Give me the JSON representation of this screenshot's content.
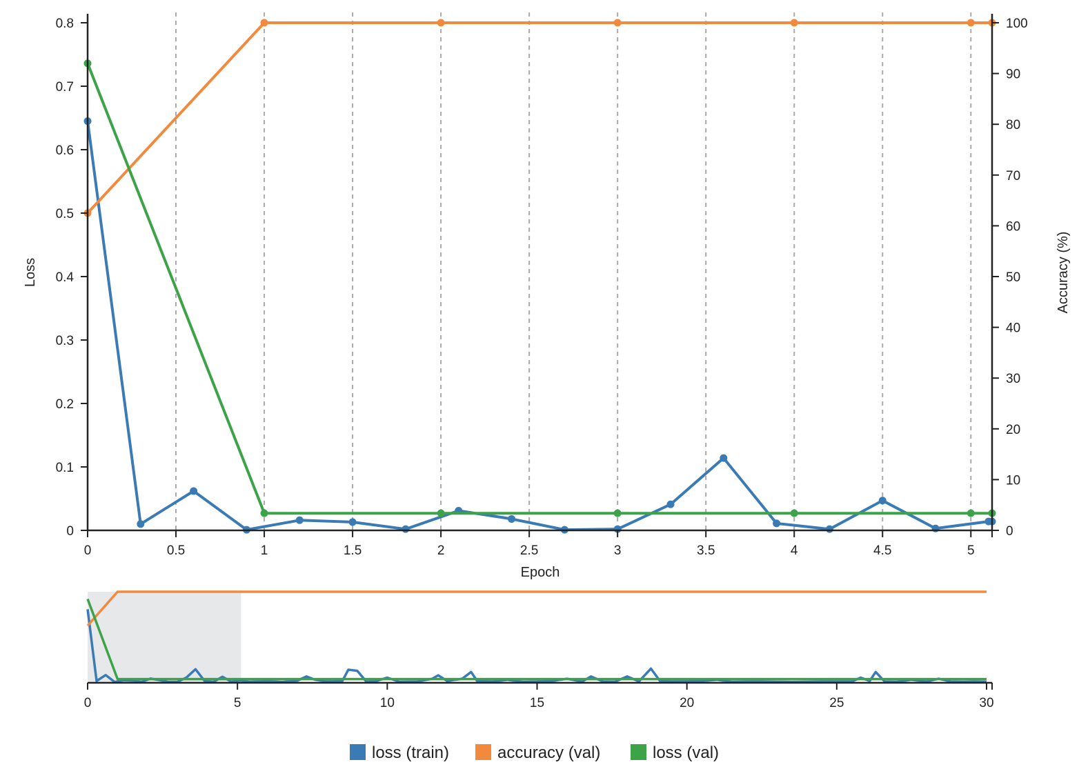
{
  "chart_data": {
    "type": "line",
    "xlabel": "Epoch",
    "ylabel": "Loss",
    "y2label": "Accuracy (%)",
    "xlim": [
      0,
      5.12
    ],
    "ylim": [
      0,
      0.8
    ],
    "y2lim": [
      0,
      100
    ],
    "x_ticks": [
      "0",
      "0.5",
      "1",
      "1.5",
      "2",
      "2.5",
      "3",
      "3.5",
      "4",
      "4.5",
      "5"
    ],
    "x_tick_values": [
      0,
      0.5,
      1,
      1.5,
      2,
      2.5,
      3,
      3.5,
      4,
      4.5,
      5
    ],
    "y_ticks": [
      "0",
      "0.1",
      "0.2",
      "0.3",
      "0.4",
      "0.5",
      "0.6",
      "0.7",
      "0.8"
    ],
    "y_tick_values": [
      0,
      0.1,
      0.2,
      0.3,
      0.4,
      0.5,
      0.6,
      0.7,
      0.8
    ],
    "y2_ticks": [
      "0",
      "10",
      "20",
      "30",
      "40",
      "50",
      "60",
      "70",
      "80",
      "90",
      "100"
    ],
    "y2_tick_values": [
      0,
      10,
      20,
      30,
      40,
      50,
      60,
      70,
      80,
      90,
      100
    ],
    "vertical_gridlines": true,
    "legend_position": "bottom-center",
    "series": [
      {
        "name": "loss (train)",
        "axis": "left",
        "color": "#3a7ab5",
        "x": [
          0,
          0.3,
          0.6,
          0.9,
          1.2,
          1.5,
          1.8,
          2.1,
          2.4,
          2.7,
          3.0,
          3.3,
          3.6,
          3.9,
          4.2,
          4.5,
          4.8,
          5.1,
          5.12
        ],
        "y": [
          0.645,
          0.01,
          0.062,
          0.001,
          0.016,
          0.013,
          0.002,
          0.031,
          0.018,
          0.001,
          0.002,
          0.041,
          0.114,
          0.011,
          0.002,
          0.047,
          0.003,
          0.014,
          0.014
        ]
      },
      {
        "name": "accuracy (val)",
        "axis": "right",
        "color": "#f28a3e",
        "x": [
          0,
          1,
          2,
          3,
          4,
          5,
          5.12
        ],
        "y": [
          62.5,
          100,
          100,
          100,
          100,
          100,
          100
        ]
      },
      {
        "name": "loss (val)",
        "axis": "left",
        "color": "#3da349",
        "x": [
          0,
          1,
          2,
          3,
          4,
          5,
          5.12
        ],
        "y": [
          0.736,
          0.027,
          0.027,
          0.027,
          0.027,
          0.027,
          0.027
        ]
      }
    ],
    "overview": {
      "xlim": [
        0,
        30
      ],
      "x_ticks": [
        "0",
        "5",
        "10",
        "15",
        "20",
        "25",
        "30"
      ],
      "x_tick_values": [
        0,
        5,
        10,
        15,
        20,
        25,
        30
      ],
      "selection": [
        0,
        5.12
      ],
      "series": [
        {
          "name": "loss (train)",
          "x": [
            0,
            0.3,
            0.6,
            0.9,
            1.2,
            1.5,
            1.8,
            2.1,
            2.4,
            2.7,
            3.0,
            3.3,
            3.6,
            3.9,
            4.2,
            4.5,
            4.8,
            5.1,
            5.4,
            6.0,
            6.5,
            7.0,
            7.3,
            7.6,
            8.0,
            8.5,
            8.7,
            9.0,
            9.3,
            9.6,
            10.0,
            10.4,
            11.0,
            11.5,
            11.7,
            12.0,
            12.5,
            12.8,
            13.0,
            13.5,
            14.0,
            14.5,
            15.0,
            15.5,
            16.0,
            16.5,
            16.8,
            17.2,
            17.6,
            18.0,
            18.4,
            18.8,
            19.1,
            19.5,
            20.0,
            20.5,
            21.0,
            21.5,
            22.0,
            22.5,
            23.0,
            23.5,
            24.0,
            24.5,
            25.0,
            25.5,
            25.8,
            26.1,
            26.3,
            26.6,
            27.0,
            27.5,
            28.0,
            28.4,
            28.8,
            29.2,
            29.6,
            30
          ],
          "y": [
            0.645,
            0.01,
            0.062,
            0.001,
            0.016,
            0.013,
            0.002,
            0.031,
            0.018,
            0.001,
            0.002,
            0.041,
            0.114,
            0.011,
            0.002,
            0.047,
            0.003,
            0.014,
            0.003,
            0.008,
            0.002,
            0.012,
            0.05,
            0.02,
            0.005,
            0.01,
            0.11,
            0.1,
            0.004,
            0.006,
            0.04,
            0.003,
            0.005,
            0.03,
            0.06,
            0.01,
            0.03,
            0.09,
            0.01,
            0.005,
            0.02,
            0.003,
            0.004,
            0.01,
            0.03,
            0.004,
            0.05,
            0.005,
            0.003,
            0.05,
            0.006,
            0.12,
            0.01,
            0.004,
            0.006,
            0.01,
            0.02,
            0.003,
            0.005,
            0.004,
            0.003,
            0.002,
            0.003,
            0.004,
            0.005,
            0.004,
            0.04,
            0.01,
            0.09,
            0.005,
            0.003,
            0.02,
            0.004,
            0.03,
            0.005,
            0.003,
            0.004,
            0.003
          ]
        },
        {
          "name": "accuracy (val)",
          "x": [
            0,
            1,
            30
          ],
          "y": [
            62.5,
            100,
            100
          ]
        },
        {
          "name": "loss (val)",
          "x": [
            0,
            1,
            30
          ],
          "y": [
            0.736,
            0.027,
            0.027
          ]
        }
      ]
    }
  }
}
